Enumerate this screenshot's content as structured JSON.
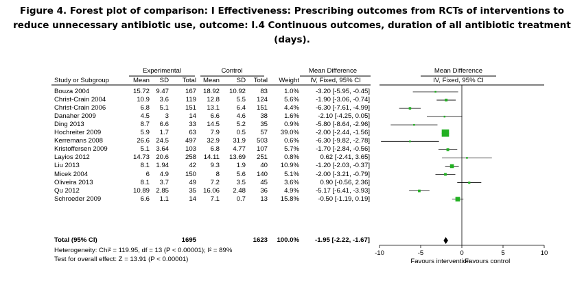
{
  "title": {
    "line1": "Figure 4.   Forest plot of comparison: I Effectiveness: Prescribing outcomes from RCTs of interventions to",
    "line2": "reduce unnecessary antibiotic use, outcome: I.4 Continuous outcomes, duration of all antibiotic treatment",
    "line3": "(days)."
  },
  "headers": {
    "experimental": "Experimental",
    "control": "Control",
    "mean_difference": "Mean Difference",
    "mean_difference_plot": "Mean Difference",
    "study": "Study or Subgroup",
    "mean": "Mean",
    "sd": "SD",
    "total": "Total",
    "c_mean": "Mean",
    "c_sd": "SD",
    "c_total": "Total",
    "weight": "Weight",
    "method": "IV, Fixed, 95% CI",
    "method_plot": "IV, Fixed, 95% CI"
  },
  "studies": [
    {
      "name": "Bouza 2004",
      "e_mean": "15.72",
      "e_sd": "9.47",
      "e_total": "167",
      "c_mean": "18.92",
      "c_sd": "10.92",
      "c_total": "83",
      "weight": "1.0%",
      "ci": "-3.20 [-5.95, -0.45]"
    },
    {
      "name": "Christ-Crain 2004",
      "e_mean": "10.9",
      "e_sd": "3.6",
      "e_total": "119",
      "c_mean": "12.8",
      "c_sd": "5.5",
      "c_total": "124",
      "weight": "5.6%",
      "ci": "-1.90 [-3.06, -0.74]"
    },
    {
      "name": "Christ-Crain 2006",
      "e_mean": "6.8",
      "e_sd": "5.1",
      "e_total": "151",
      "c_mean": "13.1",
      "c_sd": "6.4",
      "c_total": "151",
      "weight": "4.4%",
      "ci": "-6.30 [-7.61, -4.99]"
    },
    {
      "name": "Danaher 2009",
      "e_mean": "4.5",
      "e_sd": "3",
      "e_total": "14",
      "c_mean": "6.6",
      "c_sd": "4.6",
      "c_total": "38",
      "weight": "1.6%",
      "ci": "-2.10 [-4.25, 0.05]"
    },
    {
      "name": "Ding 2013",
      "e_mean": "8.7",
      "e_sd": "6.6",
      "e_total": "33",
      "c_mean": "14.5",
      "c_sd": "5.2",
      "c_total": "35",
      "weight": "0.9%",
      "ci": "-5.80 [-8.64, -2.96]"
    },
    {
      "name": "Hochreiter 2009",
      "e_mean": "5.9",
      "e_sd": "1.7",
      "e_total": "63",
      "c_mean": "7.9",
      "c_sd": "0.5",
      "c_total": "57",
      "weight": "39.0%",
      "ci": "-2.00 [-2.44, -1.56]"
    },
    {
      "name": "Kerremans 2008",
      "e_mean": "26.6",
      "e_sd": "24.5",
      "e_total": "497",
      "c_mean": "32.9",
      "c_sd": "31.9",
      "c_total": "503",
      "weight": "0.6%",
      "ci": "-6.30 [-9.82, -2.78]"
    },
    {
      "name": "Kristoffersen 2009",
      "e_mean": "5.1",
      "e_sd": "3.64",
      "e_total": "103",
      "c_mean": "6.8",
      "c_sd": "4.77",
      "c_total": "107",
      "weight": "5.7%",
      "ci": "-1.70 [-2.84, -0.56]"
    },
    {
      "name": "Layios 2012",
      "e_mean": "14.73",
      "e_sd": "20.6",
      "e_total": "258",
      "c_mean": "14.11",
      "c_sd": "13.69",
      "c_total": "251",
      "weight": "0.8%",
      "ci": "0.62 [-2.41, 3.65]"
    },
    {
      "name": "Liu 2013",
      "e_mean": "8.1",
      "e_sd": "1.94",
      "e_total": "42",
      "c_mean": "9.3",
      "c_sd": "1.9",
      "c_total": "40",
      "weight": "10.9%",
      "ci": "-1.20 [-2.03, -0.37]"
    },
    {
      "name": "Micek 2004",
      "e_mean": "6",
      "e_sd": "4.9",
      "e_total": "150",
      "c_mean": "8",
      "c_sd": "5.6",
      "c_total": "140",
      "weight": "5.1%",
      "ci": "-2.00 [-3.21, -0.79]"
    },
    {
      "name": "Oliveira 2013",
      "e_mean": "8.1",
      "e_sd": "3.7",
      "e_total": "49",
      "c_mean": "7.2",
      "c_sd": "3.5",
      "c_total": "45",
      "weight": "3.6%",
      "ci": "0.90 [-0.56, 2.36]"
    },
    {
      "name": "Qu 2012",
      "e_mean": "10.89",
      "e_sd": "2.85",
      "e_total": "35",
      "c_mean": "16.06",
      "c_sd": "2.48",
      "c_total": "36",
      "weight": "4.9%",
      "ci": "-5.17 [-6.41, -3.93]"
    },
    {
      "name": "Schroeder 2009",
      "e_mean": "6.6",
      "e_sd": "1.1",
      "e_total": "14",
      "c_mean": "7.1",
      "c_sd": "0.7",
      "c_total": "13",
      "weight": "15.8%",
      "ci": "-0.50 [-1.19, 0.19]"
    }
  ],
  "total": {
    "label": "Total (95% CI)",
    "e_total": "1695",
    "c_total": "1623",
    "weight": "100.0%",
    "ci": "-1.95 [-2.22, -1.67]"
  },
  "heterogeneity": "Heterogeneity: Chi² = 119.95, df = 13 (P < 0.00001); I² = 89%",
  "overall_effect": "Test for overall effect: Z = 13.91 (P < 0.00001)",
  "favours_left": "Favours intervention",
  "favours_right": "Favours control",
  "colors": {
    "marker": "#22b022",
    "text": "#000000"
  },
  "chart_data": {
    "type": "forest",
    "title": "Continuous outcomes, duration of all antibiotic treatment (days)",
    "xlim": [
      -10,
      10
    ],
    "ticks": [
      "-10",
      "-5",
      "0",
      "5",
      "10"
    ],
    "tick_values": [
      -10,
      -5,
      0,
      5,
      10
    ],
    "series": [
      {
        "name": "Bouza 2004",
        "md": -3.2,
        "lo": -5.95,
        "hi": -0.45,
        "weight": 1.0
      },
      {
        "name": "Christ-Crain 2004",
        "md": -1.9,
        "lo": -3.06,
        "hi": -0.74,
        "weight": 5.6
      },
      {
        "name": "Christ-Crain 2006",
        "md": -6.3,
        "lo": -7.61,
        "hi": -4.99,
        "weight": 4.4
      },
      {
        "name": "Danaher 2009",
        "md": -2.1,
        "lo": -4.25,
        "hi": 0.05,
        "weight": 1.6
      },
      {
        "name": "Ding 2013",
        "md": -5.8,
        "lo": -8.64,
        "hi": -2.96,
        "weight": 0.9
      },
      {
        "name": "Hochreiter 2009",
        "md": -2.0,
        "lo": -2.44,
        "hi": -1.56,
        "weight": 39.0
      },
      {
        "name": "Kerremans 2008",
        "md": -6.3,
        "lo": -9.82,
        "hi": -2.78,
        "weight": 0.6
      },
      {
        "name": "Kristoffersen 2009",
        "md": -1.7,
        "lo": -2.84,
        "hi": -0.56,
        "weight": 5.7
      },
      {
        "name": "Layios 2012",
        "md": 0.62,
        "lo": -2.41,
        "hi": 3.65,
        "weight": 0.8
      },
      {
        "name": "Liu 2013",
        "md": -1.2,
        "lo": -2.03,
        "hi": -0.37,
        "weight": 10.9
      },
      {
        "name": "Micek 2004",
        "md": -2.0,
        "lo": -3.21,
        "hi": -0.79,
        "weight": 5.1
      },
      {
        "name": "Oliveira 2013",
        "md": 0.9,
        "lo": -0.56,
        "hi": 2.36,
        "weight": 3.6
      },
      {
        "name": "Qu 2012",
        "md": -5.17,
        "lo": -6.41,
        "hi": -3.93,
        "weight": 4.9
      },
      {
        "name": "Schroeder 2009",
        "md": -0.5,
        "lo": -1.19,
        "hi": 0.19,
        "weight": 15.8
      }
    ],
    "pooled": {
      "md": -1.95,
      "lo": -2.22,
      "hi": -1.67
    },
    "xlabel_left": "Favours intervention",
    "xlabel_right": "Favours control"
  }
}
